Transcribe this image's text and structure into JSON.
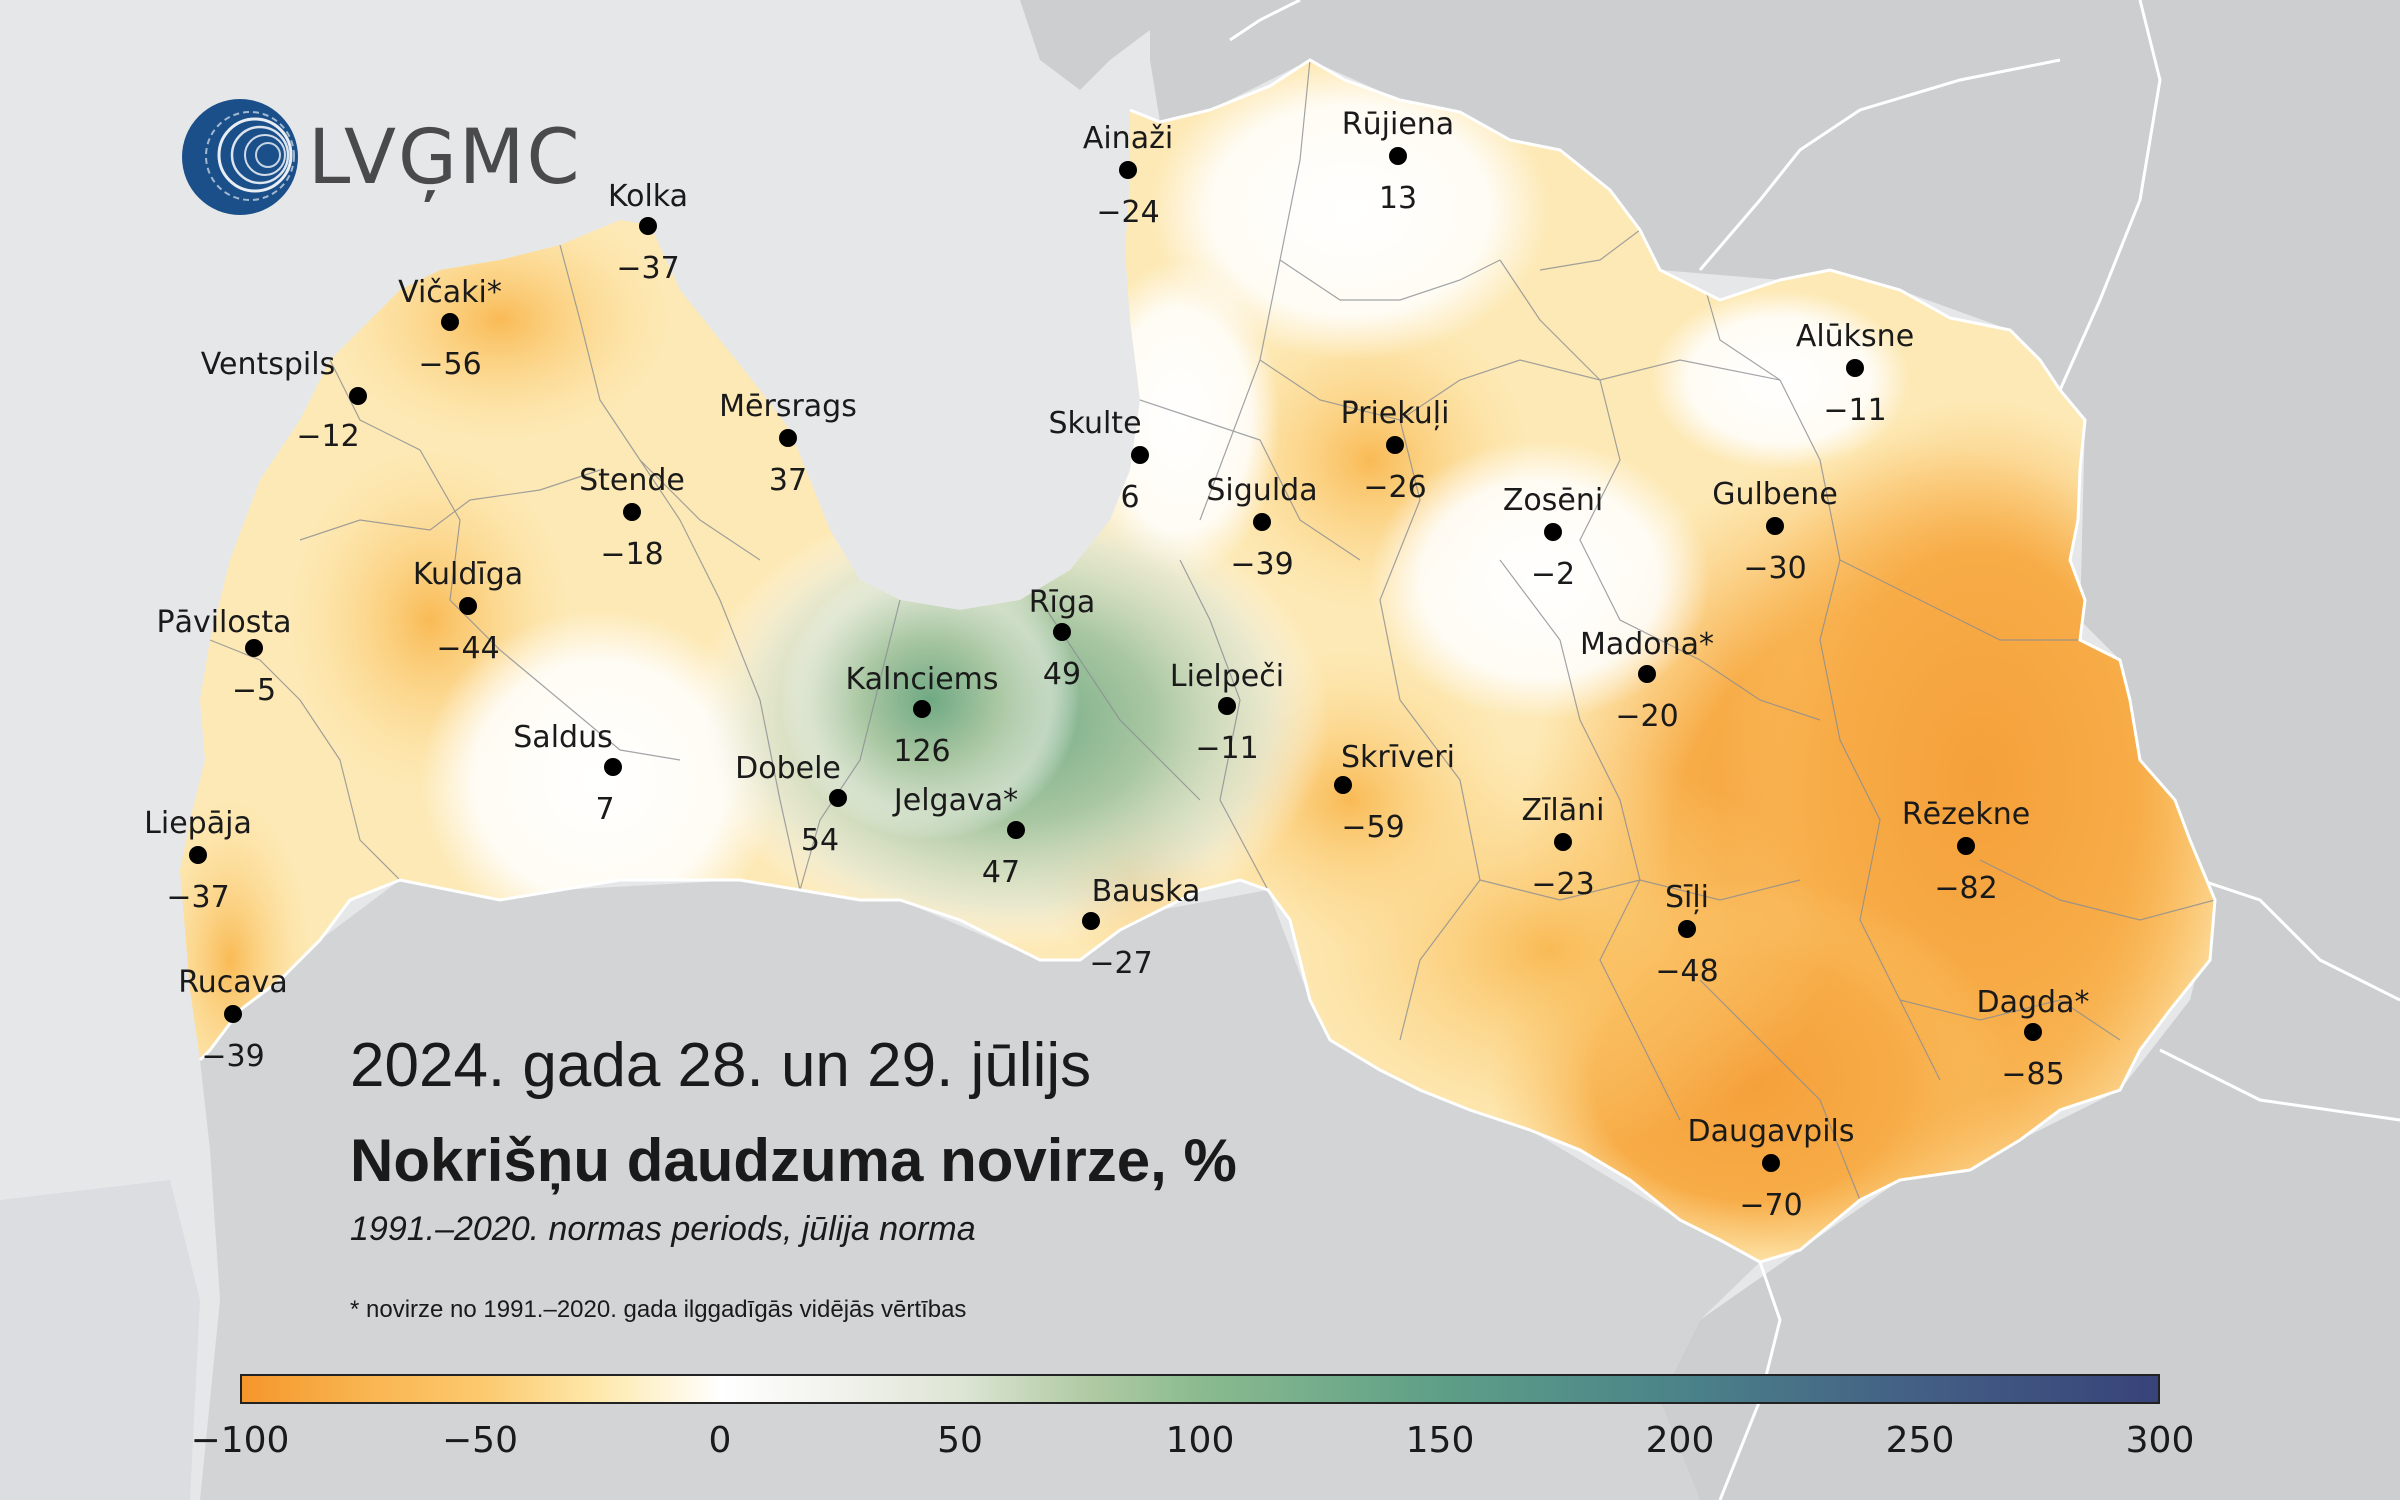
{
  "logo": {
    "text": "LVĢMC"
  },
  "title": {
    "date": "2024. gada 28. un 29. jūlijs",
    "main": "Nokrišņu daudzuma novirze, %",
    "subtitle": "1991.–2020. normas periods, jūlija norma",
    "footnote": "* novirze no 1991.–2020. gada ilggadīgās vidējās vērtības"
  },
  "colors": {
    "sea": "#e4e5e8",
    "neighbor_land": "#cdcecf",
    "border": "#ffffff",
    "point": "#000000",
    "dry_strong": "#f5a03a",
    "dry_mild": "#fde3a2",
    "neutral": "#ffffff",
    "wet": "#6fa983"
  },
  "legend": {
    "ticks": [
      "−100",
      "−50",
      "0",
      "50",
      "100",
      "150",
      "200",
      "250",
      "300"
    ],
    "min": -100,
    "max": 300,
    "stops": [
      {
        "v": -100,
        "c": "#f5962b"
      },
      {
        "v": -75,
        "c": "#f9b44f"
      },
      {
        "v": -50,
        "c": "#fcc96e"
      },
      {
        "v": -25,
        "c": "#fee9ad"
      },
      {
        "v": 0,
        "c": "#ffffff"
      },
      {
        "v": 25,
        "c": "#f1f2ec"
      },
      {
        "v": 50,
        "c": "#dde5d4"
      },
      {
        "v": 75,
        "c": "#b3cca6"
      },
      {
        "v": 100,
        "c": "#8bbb8f"
      },
      {
        "v": 150,
        "c": "#5e9f87"
      },
      {
        "v": 200,
        "c": "#4b8389"
      },
      {
        "v": 250,
        "c": "#435f85"
      },
      {
        "v": 300,
        "c": "#384379"
      }
    ]
  },
  "stations": [
    {
      "name": "Ainaži",
      "value": "−24",
      "v": -24
    },
    {
      "name": "Rūjiena",
      "value": "13",
      "v": 13
    },
    {
      "name": "Kolka",
      "value": "−37",
      "v": -37
    },
    {
      "name": "Vičaki*",
      "value": "−56",
      "v": -56
    },
    {
      "name": "Ventspils",
      "value": "−12",
      "v": -12
    },
    {
      "name": "Mērsrags",
      "value": "37",
      "v": 37
    },
    {
      "name": "Skulte",
      "value": "6",
      "v": 6
    },
    {
      "name": "Alūksne",
      "value": "−11",
      "v": -11
    },
    {
      "name": "Priekuļi",
      "value": "−26",
      "v": -26
    },
    {
      "name": "Stende",
      "value": "−18",
      "v": -18
    },
    {
      "name": "Sigulda",
      "value": "−39",
      "v": -39
    },
    {
      "name": "Zosēni",
      "value": "−2",
      "v": -2
    },
    {
      "name": "Gulbene",
      "value": "−30",
      "v": -30
    },
    {
      "name": "Kuldīga",
      "value": "−44",
      "v": -44
    },
    {
      "name": "Pāvilosta",
      "value": "−5",
      "v": -5
    },
    {
      "name": "Rīga",
      "value": "49",
      "v": 49
    },
    {
      "name": "Madona*",
      "value": "−20",
      "v": -20
    },
    {
      "name": "Kalnciems",
      "value": "126",
      "v": 126
    },
    {
      "name": "Lielpeči",
      "value": "−11",
      "v": -11
    },
    {
      "name": "Saldus",
      "value": "7",
      "v": 7
    },
    {
      "name": "Skrīveri",
      "value": "−59",
      "v": -59
    },
    {
      "name": "Dobele",
      "value": "54",
      "v": 54
    },
    {
      "name": "Jelgava*",
      "value": "47",
      "v": 47
    },
    {
      "name": "Zīlāni",
      "value": "−23",
      "v": -23
    },
    {
      "name": "Rēzekne",
      "value": "−82",
      "v": -82
    },
    {
      "name": "Liepāja",
      "value": "−37",
      "v": -37
    },
    {
      "name": "Bauska",
      "value": "−27",
      "v": -27
    },
    {
      "name": "Sīļi",
      "value": "−48",
      "v": -48
    },
    {
      "name": "Rucava",
      "value": "−39",
      "v": -39
    },
    {
      "name": "Dagda*",
      "value": "−85",
      "v": -85
    },
    {
      "name": "Daugavpils",
      "value": "−70",
      "v": -70
    }
  ]
}
